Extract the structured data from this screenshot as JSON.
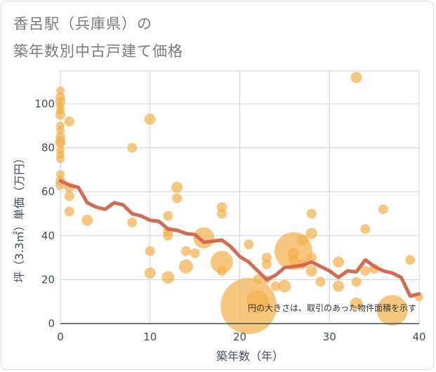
{
  "title_line1": "香呂駅（兵庫県）の",
  "title_line2": "築年数別中古戸建て価格",
  "chart_data": {
    "type": "scatter",
    "xlabel": "築年数（年）",
    "ylabel": "坪（3.3㎡）単価（万円）",
    "xlim": [
      0,
      40
    ],
    "ylim": [
      0,
      115
    ],
    "xticks": [
      0,
      10,
      20,
      30,
      40
    ],
    "yticks": [
      0,
      20,
      40,
      60,
      80,
      100
    ],
    "grid": true,
    "annotation": "円の大きさは、取引のあった物件面積を示す",
    "colors": {
      "bubble": "#f2b24d",
      "line": "#d46a52",
      "grid": "#c9d3de",
      "axis": "#3d4f5c"
    },
    "bubbles": [
      {
        "x": 0,
        "y": 106,
        "s": 6
      },
      {
        "x": 0,
        "y": 103,
        "s": 7
      },
      {
        "x": 0,
        "y": 101,
        "s": 7
      },
      {
        "x": 0,
        "y": 99,
        "s": 6
      },
      {
        "x": 0,
        "y": 97,
        "s": 6
      },
      {
        "x": 0,
        "y": 95,
        "s": 7
      },
      {
        "x": 0,
        "y": 90,
        "s": 6
      },
      {
        "x": 0,
        "y": 88,
        "s": 6
      },
      {
        "x": 0,
        "y": 85,
        "s": 7
      },
      {
        "x": 0,
        "y": 83,
        "s": 7
      },
      {
        "x": 0,
        "y": 82,
        "s": 7
      },
      {
        "x": 0,
        "y": 79,
        "s": 6
      },
      {
        "x": 0,
        "y": 77,
        "s": 6
      },
      {
        "x": 0,
        "y": 75,
        "s": 6
      },
      {
        "x": 0,
        "y": 68,
        "s": 6
      },
      {
        "x": 0,
        "y": 65,
        "s": 7
      },
      {
        "x": 0,
        "y": 63,
        "s": 7
      },
      {
        "x": 1,
        "y": 92,
        "s": 7
      },
      {
        "x": 1,
        "y": 62,
        "s": 7
      },
      {
        "x": 1,
        "y": 58,
        "s": 7
      },
      {
        "x": 1,
        "y": 51,
        "s": 7
      },
      {
        "x": 3,
        "y": 47,
        "s": 8
      },
      {
        "x": 8,
        "y": 80,
        "s": 7
      },
      {
        "x": 8,
        "y": 46,
        "s": 7
      },
      {
        "x": 10,
        "y": 93,
        "s": 8
      },
      {
        "x": 10,
        "y": 33,
        "s": 7
      },
      {
        "x": 10,
        "y": 23,
        "s": 8
      },
      {
        "x": 12,
        "y": 49,
        "s": 7
      },
      {
        "x": 12,
        "y": 42,
        "s": 7
      },
      {
        "x": 12,
        "y": 40,
        "s": 7
      },
      {
        "x": 12,
        "y": 21,
        "s": 9
      },
      {
        "x": 13,
        "y": 62,
        "s": 8
      },
      {
        "x": 13,
        "y": 57,
        "s": 7
      },
      {
        "x": 14,
        "y": 33,
        "s": 7
      },
      {
        "x": 14,
        "y": 26,
        "s": 10
      },
      {
        "x": 15,
        "y": 32,
        "s": 7
      },
      {
        "x": 16,
        "y": 39,
        "s": 15
      },
      {
        "x": 18,
        "y": 53,
        "s": 7
      },
      {
        "x": 18,
        "y": 50,
        "s": 7
      },
      {
        "x": 18,
        "y": 28,
        "s": 16
      },
      {
        "x": 18,
        "y": 24,
        "s": 7
      },
      {
        "x": 21,
        "y": 36,
        "s": 7
      },
      {
        "x": 21,
        "y": 8,
        "s": 40
      },
      {
        "x": 22,
        "y": 20,
        "s": 7
      },
      {
        "x": 22,
        "y": 10,
        "s": 16
      },
      {
        "x": 23,
        "y": 30,
        "s": 7
      },
      {
        "x": 23,
        "y": 27,
        "s": 7
      },
      {
        "x": 23,
        "y": 20,
        "s": 6
      },
      {
        "x": 24,
        "y": 17,
        "s": 7
      },
      {
        "x": 25,
        "y": 17,
        "s": 9
      },
      {
        "x": 26,
        "y": 33,
        "s": 27
      },
      {
        "x": 26,
        "y": 32,
        "s": 8
      },
      {
        "x": 26,
        "y": 29,
        "s": 7
      },
      {
        "x": 27,
        "y": 38,
        "s": 8
      },
      {
        "x": 27,
        "y": 27,
        "s": 7
      },
      {
        "x": 28,
        "y": 50,
        "s": 7
      },
      {
        "x": 28,
        "y": 41,
        "s": 8
      },
      {
        "x": 28,
        "y": 30,
        "s": 7
      },
      {
        "x": 28,
        "y": 24,
        "s": 8
      },
      {
        "x": 29,
        "y": 19,
        "s": 7
      },
      {
        "x": 31,
        "y": 28,
        "s": 8
      },
      {
        "x": 31,
        "y": 17,
        "s": 8
      },
      {
        "x": 33,
        "y": 112,
        "s": 8
      },
      {
        "x": 33,
        "y": 19,
        "s": 7
      },
      {
        "x": 33,
        "y": 9,
        "s": 9
      },
      {
        "x": 34,
        "y": 43,
        "s": 7
      },
      {
        "x": 34,
        "y": 24,
        "s": 7
      },
      {
        "x": 35,
        "y": 25,
        "s": 7
      },
      {
        "x": 36,
        "y": 52,
        "s": 7
      },
      {
        "x": 37,
        "y": 6,
        "s": 22
      },
      {
        "x": 39,
        "y": 29,
        "s": 7
      },
      {
        "x": 40,
        "y": 12,
        "s": 6
      }
    ],
    "trend": [
      {
        "x": 0,
        "y": 65
      },
      {
        "x": 1,
        "y": 63
      },
      {
        "x": 2,
        "y": 62
      },
      {
        "x": 3,
        "y": 55
      },
      {
        "x": 4,
        "y": 53
      },
      {
        "x": 5,
        "y": 52
      },
      {
        "x": 6,
        "y": 55
      },
      {
        "x": 7,
        "y": 54
      },
      {
        "x": 8,
        "y": 50
      },
      {
        "x": 9,
        "y": 49
      },
      {
        "x": 10,
        "y": 47
      },
      {
        "x": 11,
        "y": 46.5
      },
      {
        "x": 12,
        "y": 43
      },
      {
        "x": 13,
        "y": 42.5
      },
      {
        "x": 14,
        "y": 41
      },
      {
        "x": 15,
        "y": 40.5
      },
      {
        "x": 16,
        "y": 37
      },
      {
        "x": 17,
        "y": 37.5
      },
      {
        "x": 18,
        "y": 38
      },
      {
        "x": 19,
        "y": 35
      },
      {
        "x": 20,
        "y": 30.5
      },
      {
        "x": 21,
        "y": 28
      },
      {
        "x": 22,
        "y": 24
      },
      {
        "x": 23,
        "y": 20
      },
      {
        "x": 24,
        "y": 22
      },
      {
        "x": 25,
        "y": 25.5
      },
      {
        "x": 26,
        "y": 26
      },
      {
        "x": 27,
        "y": 26.5
      },
      {
        "x": 28,
        "y": 28
      },
      {
        "x": 29,
        "y": 26
      },
      {
        "x": 30,
        "y": 24
      },
      {
        "x": 31,
        "y": 21
      },
      {
        "x": 32,
        "y": 24
      },
      {
        "x": 33,
        "y": 23.5
      },
      {
        "x": 34,
        "y": 29
      },
      {
        "x": 35,
        "y": 26
      },
      {
        "x": 36,
        "y": 24
      },
      {
        "x": 37,
        "y": 23
      },
      {
        "x": 38,
        "y": 21
      },
      {
        "x": 39,
        "y": 12.5
      },
      {
        "x": 40,
        "y": 13.5
      }
    ]
  }
}
